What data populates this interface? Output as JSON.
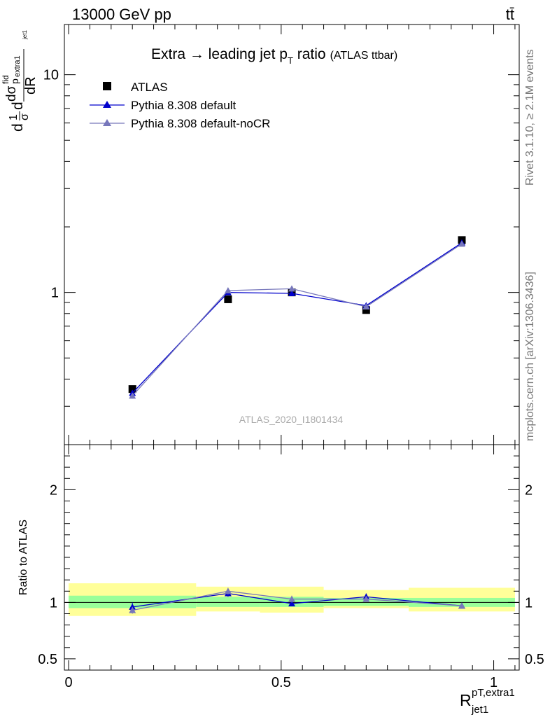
{
  "header": {
    "energy_label": "13000 GeV pp",
    "process_label": "tt̄"
  },
  "side_labels": {
    "rivet": "Rivet 3.1.10, ≥ 2.1M events",
    "mcplots": "mcplots.cern.ch [arXiv:1306.3436]"
  },
  "chart_data": {
    "type": "line",
    "title_main": "Extra → leading jet p",
    "title_sub": "T",
    "title_tail": " ratio",
    "title_note": "(ATLAS ttbar)",
    "watermark": "ATLAS_2020_I1801434",
    "y_axis_label": {
      "d1": "d",
      "frac1_num": "1",
      "frac1_den": "σ",
      "d2": "d",
      "num_d": "dσ",
      "num_sup": "fid",
      "num_sub": "p",
      "den": "dR",
      "den_sub1": "extra1",
      "den_sub2": "jet1"
    },
    "x_axis_label": {
      "main": "R",
      "sup": "pT,extra1",
      "sub": "jet1"
    },
    "xlim": [
      -0.01,
      1.06
    ],
    "main_ylim_log": [
      0.2,
      17
    ],
    "main_y_ticks": [
      {
        "value": 1,
        "label": "1"
      },
      {
        "value": 10,
        "label": "10"
      }
    ],
    "ratio_ylim": [
      0.4,
      2.4
    ],
    "ratio_y_ticks": [
      {
        "value": 0.5,
        "label": "0.5"
      },
      {
        "value": 1,
        "label": "1"
      },
      {
        "value": 2,
        "label": "2"
      }
    ],
    "x_ticks": [
      {
        "value": 0,
        "label": "0"
      },
      {
        "value": 0.5,
        "label": "0.5"
      },
      {
        "value": 1,
        "label": "1"
      }
    ],
    "ratio_ylabel": "Ratio to ATLAS",
    "legend": {
      "position": "top-left",
      "entries": [
        {
          "label": "ATLAS",
          "marker": "square",
          "color": "#000000"
        },
        {
          "label": "Pythia 8.308 default",
          "marker": "triangle",
          "color": "#0000cc"
        },
        {
          "label": "Pythia 8.308 default-noCR",
          "marker": "triangle",
          "color": "#7777bb"
        }
      ]
    },
    "bins": [
      {
        "lo": 0.0,
        "hi": 0.3,
        "x": 0.15
      },
      {
        "lo": 0.3,
        "hi": 0.45,
        "x": 0.375
      },
      {
        "lo": 0.45,
        "hi": 0.6,
        "x": 0.525
      },
      {
        "lo": 0.6,
        "hi": 0.8,
        "x": 0.7
      },
      {
        "lo": 0.8,
        "hi": 1.05,
        "x": 0.925
      }
    ],
    "series": [
      {
        "name": "ATLAS",
        "color": "#000000",
        "values": [
          0.36,
          0.93,
          1.0,
          0.83,
          1.74
        ]
      },
      {
        "name": "Pythia 8.308 default",
        "color": "#0000cc",
        "values": [
          0.345,
          1.0,
          0.99,
          0.87,
          1.69
        ],
        "errors": [
          0.01,
          0.02,
          0.02,
          0.02,
          0.03
        ]
      },
      {
        "name": "Pythia 8.308 default-noCR",
        "color": "#7777bb",
        "values": [
          0.335,
          1.02,
          1.04,
          0.86,
          1.67
        ],
        "errors": [
          0.01,
          0.02,
          0.02,
          0.02,
          0.03
        ]
      }
    ],
    "ratio_series": [
      {
        "name": "Pythia 8.308 default",
        "color": "#0000cc",
        "values": [
          0.96,
          1.08,
          0.99,
          1.05,
          0.97
        ],
        "errors": [
          0.04,
          0.03,
          0.02,
          0.03,
          0.01
        ]
      },
      {
        "name": "Pythia 8.308 default-noCR",
        "color": "#7777bb",
        "values": [
          0.93,
          1.1,
          1.03,
          1.03,
          0.97
        ],
        "errors": [
          0.03,
          0.03,
          0.03,
          0.02,
          0.01
        ]
      }
    ],
    "bands": {
      "green_color": "#99ff99",
      "yellow_color": "#ffff99",
      "green": [
        [
          0.95,
          1.06
        ],
        [
          0.96,
          1.05
        ],
        [
          0.96,
          1.05
        ],
        [
          0.97,
          1.04
        ],
        [
          0.96,
          1.04
        ]
      ],
      "yellow": [
        [
          0.88,
          1.17
        ],
        [
          0.92,
          1.14
        ],
        [
          0.91,
          1.14
        ],
        [
          0.95,
          1.11
        ],
        [
          0.92,
          1.13
        ]
      ]
    }
  }
}
